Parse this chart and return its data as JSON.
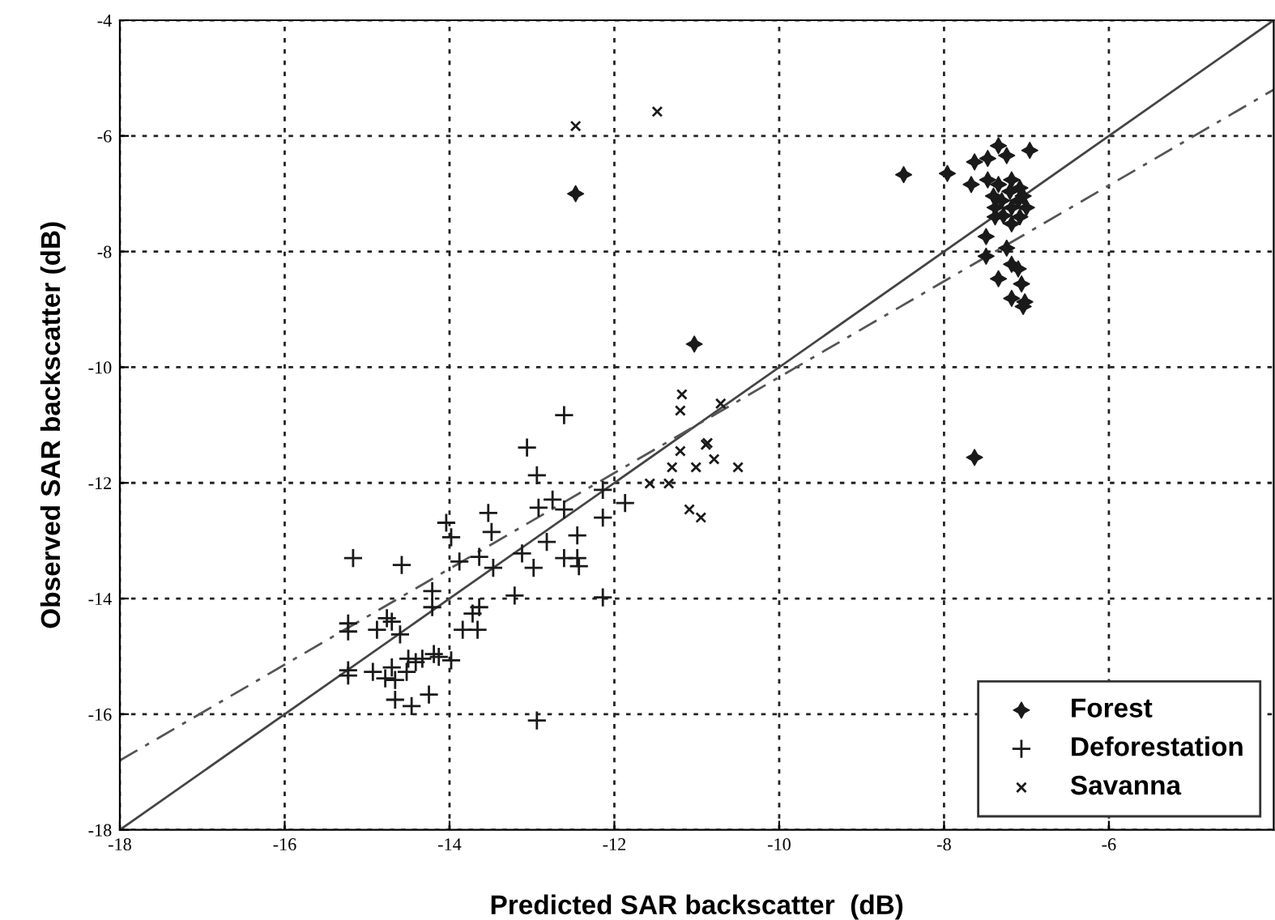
{
  "chart_data": {
    "type": "scatter",
    "xlabel": "Predicted SAR backscatter  (dB)",
    "ylabel": "Observed SAR backscatter (dB)",
    "xlim": [
      -18,
      -4
    ],
    "ylim": [
      -18,
      -4
    ],
    "xticks": [
      -18,
      -16,
      -14,
      -12,
      -10,
      -8,
      -6
    ],
    "yticks": [
      -18,
      -16,
      -14,
      -12,
      -10,
      -8,
      -6,
      -4
    ],
    "grid": true,
    "legend": "lower right",
    "series": [
      {
        "name": "Forest",
        "color": "#1a1a1a",
        "marker": "star",
        "x": [
          -12.47,
          -11.03,
          -8.49,
          -7.96,
          -7.63,
          -7.34,
          -6.96,
          -7.63,
          -7.47,
          -7.24,
          -7.67,
          -7.47,
          -7.34,
          -7.18,
          -7.08,
          -7.4,
          -7.04,
          -7.38,
          -7.18,
          -7.0,
          -7.28,
          -7.08,
          -7.38,
          -7.18,
          -7.49,
          -7.49,
          -7.24,
          -7.18,
          -7.1,
          -7.34,
          -7.06,
          -7.18,
          -7.02,
          -7.04,
          -7.2,
          -7.1,
          -7.3
        ],
        "values": [
          -7.0,
          -9.6,
          -6.67,
          -6.65,
          -11.56,
          -6.17,
          -6.25,
          -6.45,
          -6.39,
          -6.34,
          -6.84,
          -6.76,
          -6.84,
          -6.76,
          -6.9,
          -7.04,
          -7.04,
          -7.24,
          -7.24,
          -7.24,
          -7.38,
          -7.4,
          -7.4,
          -7.52,
          -7.74,
          -8.08,
          -7.94,
          -8.22,
          -8.3,
          -8.47,
          -8.56,
          -8.81,
          -8.87,
          -8.95,
          -6.96,
          -7.12,
          -7.12
        ]
      },
      {
        "name": "Deforestation",
        "color": "#1a1a1a",
        "marker": "plus",
        "x": [
          -15.17,
          -14.58,
          -15.23,
          -15.23,
          -14.88,
          -14.76,
          -14.7,
          -14.6,
          -15.23,
          -15.23,
          -14.93,
          -14.78,
          -14.7,
          -14.66,
          -14.52,
          -14.5,
          -14.41,
          -14.33,
          -14.19,
          -14.13,
          -13.98,
          -14.66,
          -14.46,
          -14.25,
          -14.21,
          -14.21,
          -14.04,
          -13.98,
          -13.88,
          -13.84,
          -13.66,
          -13.72,
          -13.64,
          -13.64,
          -13.53,
          -13.49,
          -13.47,
          -13.21,
          -13.12,
          -12.98,
          -13.06,
          -12.94,
          -12.92,
          -12.82,
          -12.75,
          -12.61,
          -12.61,
          -12.61,
          -12.45,
          -12.45,
          -12.43,
          -12.94,
          -12.14,
          -12.14,
          -12.14,
          -11.87
        ],
        "values": [
          -13.3,
          -13.42,
          -14.43,
          -14.57,
          -14.54,
          -14.34,
          -14.4,
          -14.62,
          -15.24,
          -15.33,
          -15.27,
          -15.38,
          -15.19,
          -15.41,
          -15.27,
          -15.04,
          -15.1,
          -15.04,
          -14.96,
          -15.01,
          -15.07,
          -15.75,
          -15.86,
          -15.66,
          -14.15,
          -13.87,
          -12.69,
          -12.94,
          -13.36,
          -14.54,
          -14.54,
          -14.26,
          -14.15,
          -13.28,
          -12.52,
          -12.85,
          -13.47,
          -13.95,
          -13.22,
          -13.47,
          -11.39,
          -11.87,
          -12.43,
          -13.02,
          -12.29,
          -12.46,
          -10.83,
          -13.3,
          -12.91,
          -13.3,
          -13.44,
          -16.11,
          -12.12,
          -12.6,
          -13.98,
          -12.35
        ]
      },
      {
        "name": "Savanna",
        "color": "#1a1a1a",
        "marker": "cross",
        "x": [
          -12.47,
          -11.48,
          -11.57,
          -11.34,
          -11.3,
          -11.2,
          -11.01,
          -10.79,
          -10.89,
          -11.09,
          -10.95,
          -10.5,
          -11.2,
          -11.18,
          -10.71,
          -10.87
        ],
        "values": [
          -5.83,
          -5.58,
          -12.01,
          -12.01,
          -11.73,
          -11.45,
          -11.73,
          -11.59,
          -11.34,
          -12.46,
          -12.6,
          -11.73,
          -10.75,
          -10.47,
          -10.63,
          -11.31
        ]
      },
      {
        "type": "line",
        "color": "#444444",
        "line_style": "solid",
        "marker": "none",
        "x": [
          -18,
          -4
        ],
        "values": [
          -18,
          -4
        ]
      },
      {
        "type": "line",
        "color": "#555555",
        "line_style": "dashed",
        "marker": "none",
        "x": [
          -18,
          -4
        ],
        "values": [
          -16.8,
          -5.2
        ]
      }
    ]
  }
}
